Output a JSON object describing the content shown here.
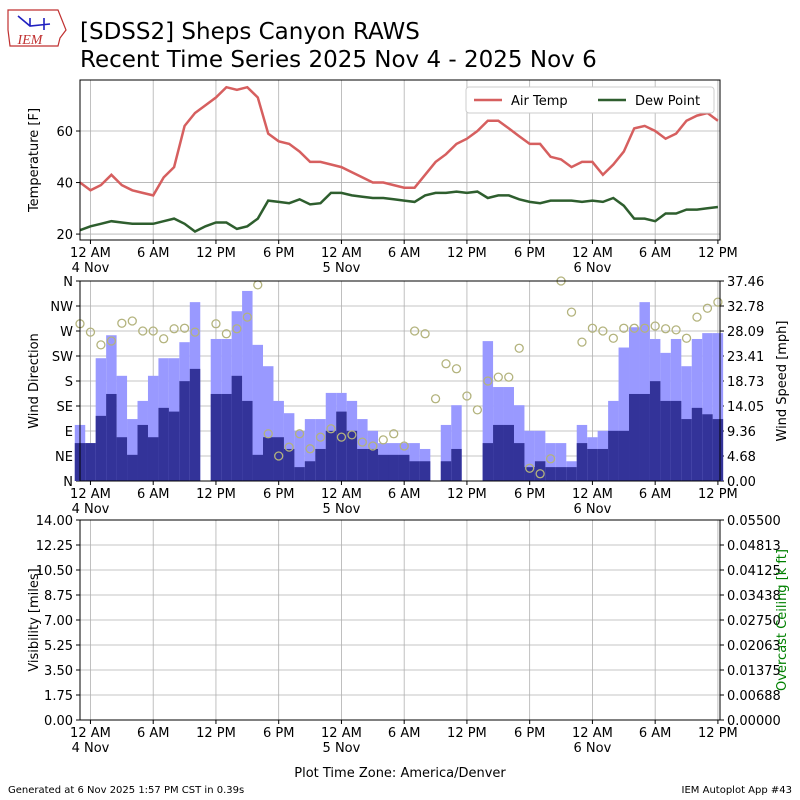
{
  "header": {
    "title": [
      "[SDSS2] Sheps Canyon RAWS",
      "Recent Time Series 2025 Nov 4 - 2025 Nov 6"
    ],
    "logo": "IEM"
  },
  "footer": {
    "left": "Generated at 6 Nov 2025 1:57 PM CST in 0.39s",
    "right": "IEM Autoplot App #43"
  },
  "chart_data": [
    {
      "type": "line",
      "ylabel": "Temperature [F]",
      "grid": true,
      "legend": "upper right",
      "xlim": [
        -1,
        60.2
      ],
      "ylim": [
        17.7,
        79.8
      ],
      "yticks": [
        20,
        40,
        60
      ],
      "xticks": [
        {
          "value": 0,
          "label": "12 AM\n4 Nov"
        },
        {
          "value": 6,
          "label": "6 AM"
        },
        {
          "value": 12,
          "label": "12 PM"
        },
        {
          "value": 18,
          "label": "6 PM"
        },
        {
          "value": 24,
          "label": "12 AM\n5 Nov"
        },
        {
          "value": 30,
          "label": "6 AM"
        },
        {
          "value": 36,
          "label": "12 PM"
        },
        {
          "value": 42,
          "label": "6 PM"
        },
        {
          "value": 48,
          "label": "12 AM\n6 Nov"
        },
        {
          "value": 54,
          "label": "6 AM"
        },
        {
          "value": 60,
          "label": "12 PM"
        }
      ],
      "x": [
        -1,
        0,
        1,
        2,
        3,
        4,
        5,
        6,
        7,
        8,
        9,
        10,
        11,
        12,
        13,
        14,
        15,
        16,
        17,
        18,
        19,
        20,
        21,
        22,
        23,
        24,
        25,
        26,
        27,
        28,
        29,
        30,
        31,
        32,
        33,
        34,
        35,
        36,
        37,
        38,
        39,
        40,
        41,
        42,
        43,
        44,
        45,
        46,
        47,
        48,
        49,
        50,
        51,
        52,
        53,
        54,
        55,
        56,
        57,
        58,
        59,
        60
      ],
      "series": [
        {
          "name": "Air Temp",
          "color": "#d65f5f",
          "values": [
            40,
            37,
            39,
            43,
            39,
            37,
            36,
            35,
            42,
            46,
            62,
            67,
            70,
            73,
            77,
            76,
            77,
            73,
            59,
            56,
            55,
            52,
            48,
            48,
            47,
            46,
            44,
            42,
            40,
            40,
            39,
            38,
            38,
            43,
            48,
            51,
            55,
            57,
            60,
            64,
            64,
            61,
            58,
            55,
            55,
            50,
            49,
            46,
            48,
            48,
            43,
            47,
            52,
            61,
            62,
            60,
            57,
            59,
            64,
            66,
            67,
            64
          ]
        },
        {
          "name": "Dew Point",
          "color": "#2e5e2e",
          "values": [
            21.5,
            23,
            24,
            25,
            24.5,
            24,
            24,
            24,
            25,
            26,
            24,
            21,
            23,
            24.5,
            24.5,
            22,
            23,
            26,
            33,
            32.5,
            32,
            33.5,
            31.5,
            32,
            36,
            36,
            35,
            34.5,
            34,
            34,
            33.5,
            33,
            32.5,
            35,
            36,
            36,
            36.5,
            36,
            36.5,
            34,
            35,
            35,
            33.5,
            32.5,
            32,
            33,
            33,
            33,
            32.5,
            33,
            32.5,
            34,
            31,
            26,
            26,
            25,
            28,
            28,
            29.5,
            29.5,
            30,
            30.5
          ]
        }
      ]
    },
    {
      "type": "bar",
      "ylabel": "Wind Direction",
      "y2label": "Wind Speed [mph]",
      "grid": true,
      "xlim": [
        -1,
        60.2
      ],
      "ylim": [
        0,
        360
      ],
      "yticks": [
        {
          "value": 0,
          "label": "N"
        },
        {
          "value": 45,
          "label": "NE"
        },
        {
          "value": 90,
          "label": "E"
        },
        {
          "value": 135,
          "label": "SE"
        },
        {
          "value": 180,
          "label": "S"
        },
        {
          "value": 225,
          "label": "SW"
        },
        {
          "value": 270,
          "label": "W"
        },
        {
          "value": 315,
          "label": "NW"
        },
        {
          "value": 360,
          "label": "N"
        }
      ],
      "y2lim": [
        0,
        37.46
      ],
      "y2ticks": [
        {
          "value": 0,
          "label": "0.00"
        },
        4.68,
        9.36,
        14.05,
        18.73,
        23.41,
        28.09,
        32.78,
        37.46
      ],
      "xticks": [
        {
          "value": 0,
          "label": "12 AM\n4 Nov"
        },
        {
          "value": 6,
          "label": "6 AM"
        },
        {
          "value": 12,
          "label": "12 PM"
        },
        {
          "value": 18,
          "label": "6 PM"
        },
        {
          "value": 24,
          "label": "12 AM\n5 Nov"
        },
        {
          "value": 30,
          "label": "6 AM"
        },
        {
          "value": 36,
          "label": "12 PM"
        },
        {
          "value": 42,
          "label": "6 PM"
        },
        {
          "value": 48,
          "label": "12 AM\n6 Nov"
        },
        {
          "value": 54,
          "label": "6 AM"
        },
        {
          "value": 60,
          "label": "12 PM"
        }
      ],
      "x": [
        -1,
        0,
        1,
        2,
        3,
        4,
        5,
        6,
        7,
        8,
        9,
        10,
        11,
        12,
        13,
        14,
        15,
        16,
        17,
        18,
        19,
        20,
        21,
        22,
        23,
        24,
        25,
        26,
        27,
        28,
        29,
        30,
        31,
        32,
        33,
        34,
        35,
        36,
        37,
        38,
        39,
        40,
        41,
        42,
        43,
        44,
        45,
        46,
        47,
        48,
        49,
        50,
        51,
        52,
        53,
        54,
        55,
        56,
        57,
        58,
        59,
        60
      ],
      "series": [
        {
          "type": "bar",
          "axis": "y2",
          "color": "#9999ff",
          "values": [
            10.5,
            7.1,
            23,
            27.3,
            19.7,
            11.6,
            15,
            19.7,
            23,
            23,
            26,
            33.5,
            null,
            26.6,
            26.6,
            31.8,
            35.6,
            25.5,
            21.5,
            15,
            12.7,
            9.4,
            11.6,
            11.6,
            16.5,
            16.5,
            15,
            11.6,
            9.4,
            7.1,
            7.1,
            7.1,
            7.1,
            6,
            null,
            10.5,
            14.2,
            null,
            null,
            26.2,
            17.6,
            17.6,
            14.2,
            9.4,
            9.4,
            7.1,
            7.1,
            3.7,
            10.5,
            8.2,
            9.4,
            15,
            25,
            28.8,
            33.5,
            26.6,
            24,
            26.6,
            21.5,
            26.6,
            27.7,
            27.7
          ]
        },
        {
          "type": "bar",
          "axis": "y2",
          "color": "#333399",
          "values": [
            7.1,
            7.1,
            12.2,
            16.3,
            8.2,
            4.9,
            10.5,
            8.2,
            13.7,
            13,
            18.7,
            21,
            null,
            16.3,
            16.3,
            19.7,
            15,
            4.9,
            8.2,
            8.2,
            6,
            2.6,
            3.7,
            6,
            9.4,
            13,
            9.4,
            6,
            6,
            4.9,
            4.9,
            4.9,
            3.7,
            3.7,
            null,
            3.7,
            6,
            null,
            null,
            7.1,
            10.5,
            10.5,
            7.1,
            2.6,
            3.7,
            2.6,
            2.6,
            2.6,
            7.1,
            6,
            6,
            9.4,
            9.4,
            16.3,
            16.3,
            18.7,
            15,
            15,
            11.6,
            13.7,
            12.5,
            11.6
          ]
        },
        {
          "type": "scatter",
          "color": "#b3b37d",
          "values": [
            283,
            268,
            245,
            252,
            284,
            288,
            270,
            270,
            256,
            274,
            275,
            268,
            null,
            283,
            265,
            274,
            295,
            353,
            85,
            45,
            61,
            85,
            58,
            79,
            94,
            79,
            83,
            70,
            63,
            74,
            85,
            63,
            270,
            265,
            148,
            211,
            202,
            153,
            128,
            180,
            187,
            187,
            239,
            23,
            13,
            40,
            360,
            304,
            250,
            275,
            270,
            257,
            275,
            275,
            275,
            279,
            274,
            272,
            257,
            295,
            311,
            322
          ]
        }
      ]
    },
    {
      "type": "line",
      "ylabel": "Visibility [miles]",
      "y2label": "Overcast Ceiling [k ft]",
      "y2label_color": "#008000",
      "xlabel": "Plot Time Zone: America/Denver",
      "grid": true,
      "xlim": [
        -1,
        60.2
      ],
      "ylim": [
        0,
        14
      ],
      "yticks": [
        {
          "value": 0,
          "label": "0.00"
        },
        {
          "value": 1.75,
          "label": "1.75"
        },
        {
          "value": 3.5,
          "label": "3.50"
        },
        {
          "value": 5.25,
          "label": "5.25"
        },
        {
          "value": 7,
          "label": "7.00"
        },
        {
          "value": 8.75,
          "label": "8.75"
        },
        {
          "value": 10.5,
          "label": "10.50"
        },
        {
          "value": 12.25,
          "label": "12.25"
        },
        {
          "value": 14,
          "label": "14.00"
        }
      ],
      "y2lim": [
        0,
        0.055
      ],
      "y2ticks": [
        {
          "value": 0,
          "label": "0.00000"
        },
        {
          "value": 0.006875,
          "label": "0.00688"
        },
        {
          "value": 0.01375,
          "label": "0.01375"
        },
        {
          "value": 0.020625,
          "label": "0.02063"
        },
        {
          "value": 0.0275,
          "label": "0.02750"
        },
        {
          "value": 0.034375,
          "label": "0.03438"
        },
        {
          "value": 0.04125,
          "label": "0.04125"
        },
        {
          "value": 0.048125,
          "label": "0.04813"
        },
        {
          "value": 0.055,
          "label": "0.05500"
        }
      ],
      "xticks": [
        {
          "value": 0,
          "label": "12 AM\n4 Nov"
        },
        {
          "value": 6,
          "label": "6 AM"
        },
        {
          "value": 12,
          "label": "12 PM"
        },
        {
          "value": 18,
          "label": "6 PM"
        },
        {
          "value": 24,
          "label": "12 AM\n5 Nov"
        },
        {
          "value": 30,
          "label": "6 AM"
        },
        {
          "value": 36,
          "label": "12 PM"
        },
        {
          "value": 42,
          "label": "6 PM"
        },
        {
          "value": 48,
          "label": "12 AM\n6 Nov"
        },
        {
          "value": 54,
          "label": "6 AM"
        },
        {
          "value": 60,
          "label": "12 PM"
        }
      ]
    }
  ]
}
